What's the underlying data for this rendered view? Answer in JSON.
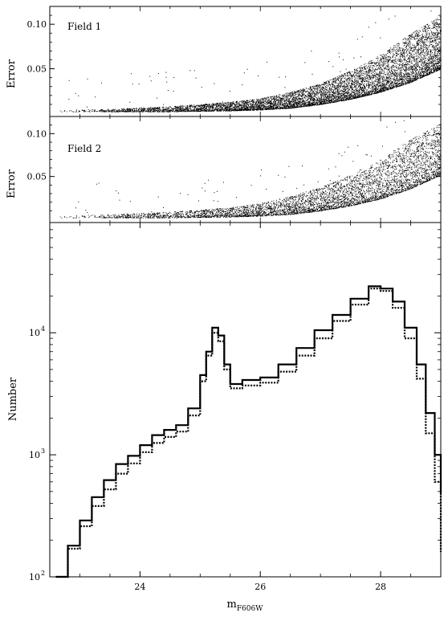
{
  "chart_data": [
    {
      "type": "scatter",
      "annotation": "Field 1",
      "ylabel": "Error",
      "xlim": [
        22.5,
        29.0
      ],
      "ylim": [
        0.0,
        0.12
      ],
      "yticks": [
        0.05,
        0.1
      ],
      "ytick_labels": [
        "0.05",
        "0.10"
      ],
      "density_envelope": {
        "x": [
          22.6,
          23.5,
          24.5,
          25.5,
          26.0,
          26.5,
          27.0,
          27.5,
          28.0,
          28.5,
          29.0
        ],
        "lower": [
          0.002,
          0.002,
          0.002,
          0.003,
          0.004,
          0.006,
          0.01,
          0.016,
          0.024,
          0.035,
          0.05
        ],
        "upper": [
          0.004,
          0.005,
          0.008,
          0.013,
          0.017,
          0.024,
          0.034,
          0.048,
          0.066,
          0.09,
          0.11
        ]
      },
      "color": "#000000"
    },
    {
      "type": "scatter",
      "annotation": "Field 2",
      "ylabel": "Error",
      "xlim": [
        22.5,
        29.0
      ],
      "ylim": [
        0.0,
        0.12
      ],
      "yticks": [
        0.05,
        0.1
      ],
      "ytick_labels": [
        "0.05",
        "0.10"
      ],
      "density_envelope": {
        "x": [
          22.6,
          23.5,
          24.5,
          25.5,
          26.0,
          26.5,
          27.0,
          27.5,
          28.0,
          28.5,
          29.0
        ],
        "lower": [
          0.002,
          0.002,
          0.002,
          0.003,
          0.004,
          0.006,
          0.01,
          0.016,
          0.024,
          0.036,
          0.052
        ],
        "upper": [
          0.004,
          0.006,
          0.009,
          0.014,
          0.019,
          0.027,
          0.038,
          0.052,
          0.07,
          0.094,
          0.112
        ]
      },
      "color": "#000000"
    },
    {
      "type": "line",
      "step": true,
      "xlabel": "m",
      "xlabel_sub": "F606W",
      "ylabel": "Number",
      "xlim": [
        22.5,
        29.0
      ],
      "ylim": [
        100,
        80000
      ],
      "log_y": true,
      "xticks": [
        24,
        26,
        28
      ],
      "xtick_labels": [
        "24",
        "26",
        "28"
      ],
      "yticks": [
        100,
        1000,
        10000
      ],
      "ytick_labels": [
        "10",
        "10",
        "10"
      ],
      "ytick_exponents": [
        "2",
        "3",
        "4"
      ],
      "x": [
        22.6,
        22.8,
        23.0,
        23.2,
        23.4,
        23.6,
        23.8,
        24.0,
        24.2,
        24.4,
        24.6,
        24.8,
        25.0,
        25.1,
        25.2,
        25.3,
        25.4,
        25.5,
        25.7,
        26.0,
        26.3,
        26.6,
        26.9,
        27.2,
        27.5,
        27.8,
        28.0,
        28.2,
        28.4,
        28.6,
        28.75,
        28.9,
        29.0
      ],
      "series": [
        {
          "style": "solid",
          "values": [
            100,
            180,
            290,
            450,
            620,
            840,
            980,
            1200,
            1450,
            1600,
            1750,
            2400,
            4500,
            7000,
            11000,
            9500,
            5500,
            3800,
            4100,
            4300,
            5500,
            7500,
            10500,
            14000,
            19000,
            24000,
            23000,
            18000,
            11000,
            5500,
            2200,
            1000,
            480
          ]
        },
        {
          "style": "dotted",
          "values": [
            100,
            170,
            260,
            380,
            520,
            700,
            850,
            1050,
            1250,
            1400,
            1550,
            2100,
            4000,
            6500,
            10000,
            8500,
            5000,
            3500,
            3700,
            3900,
            4800,
            6500,
            9000,
            12500,
            17000,
            23000,
            22000,
            16000,
            9000,
            4200,
            1500,
            600,
            160
          ]
        }
      ]
    }
  ]
}
